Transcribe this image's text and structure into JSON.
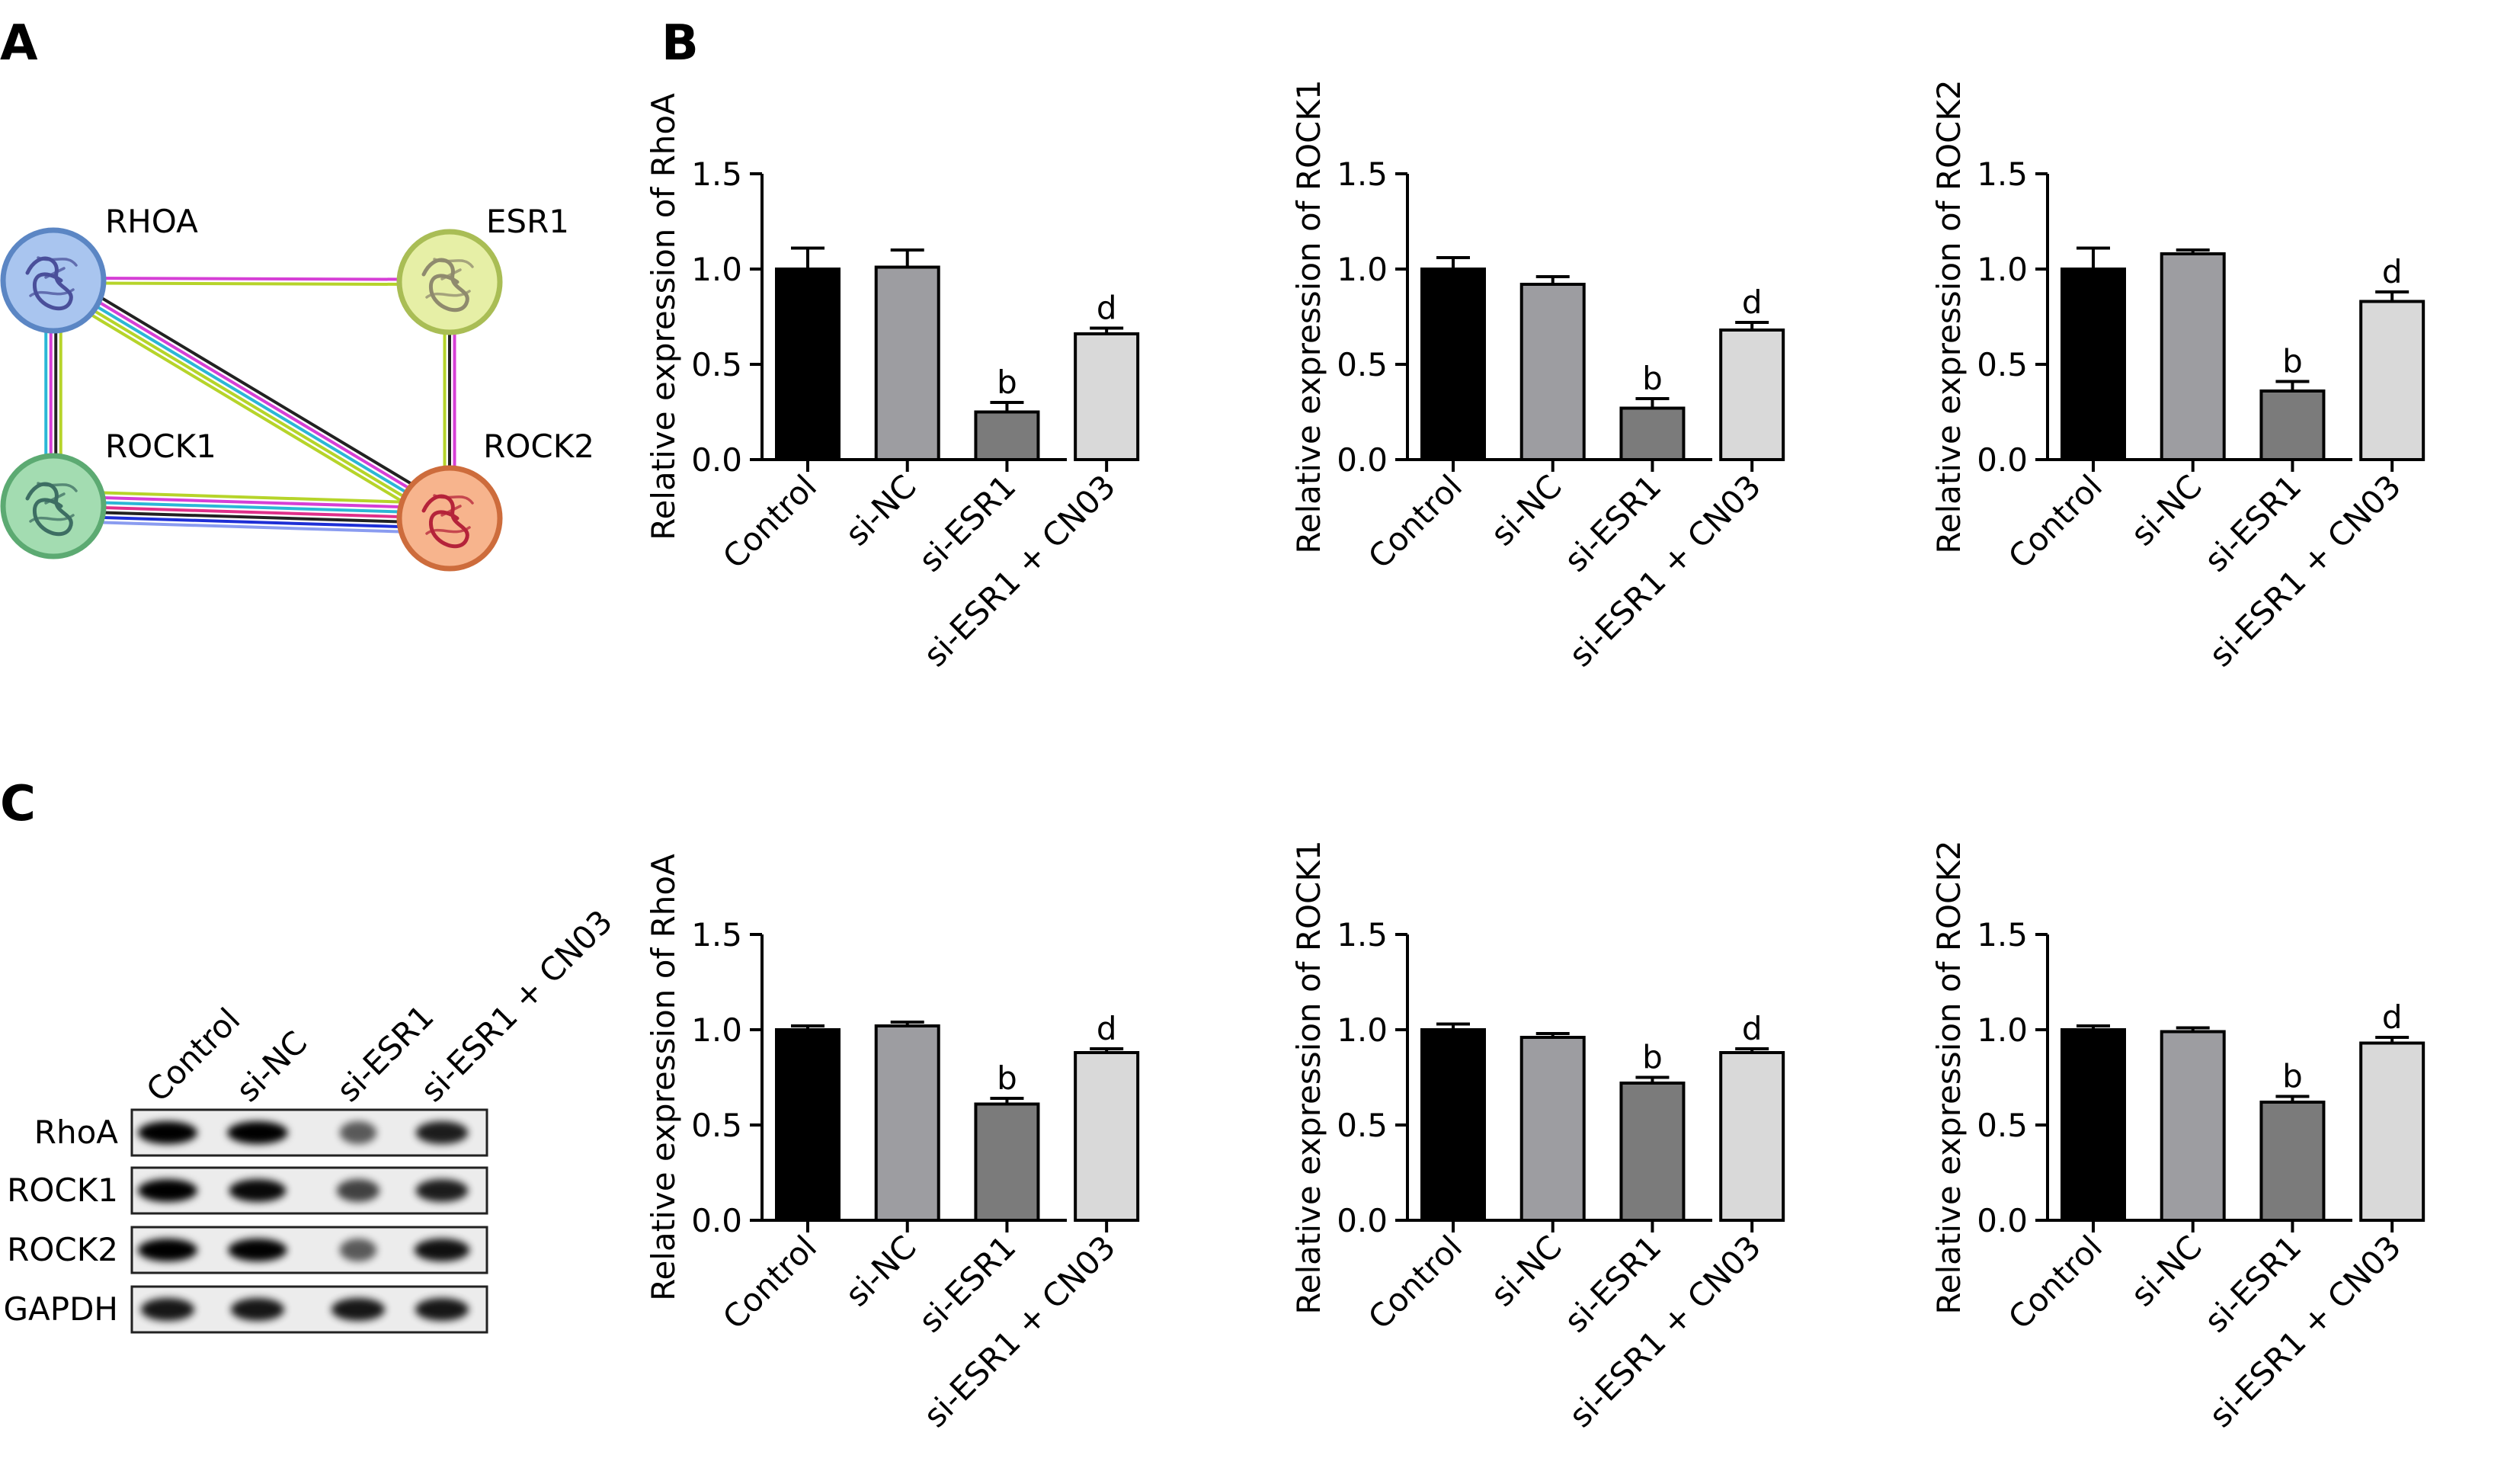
{
  "panels": {
    "a": "A",
    "b": "B",
    "c": "C"
  },
  "network": {
    "nodes": [
      {
        "id": "RHOA",
        "label": "RHOA",
        "color": "#a9c5ef",
        "stroke": "#5b86c4"
      },
      {
        "id": "ESR1",
        "label": "ESR1",
        "color": "#e6efa6",
        "stroke": "#a9bd55"
      },
      {
        "id": "ROCK1",
        "label": "ROCK1",
        "color": "#a3dcb1",
        "stroke": "#5caa72"
      },
      {
        "id": "ROCK2",
        "label": "ROCK2",
        "color": "#f7b48d",
        "stroke": "#cd6c3c"
      }
    ],
    "edges": [
      {
        "from": "RHOA",
        "to": "ESR1",
        "colors": [
          "#d63fd6",
          "#b6d42a"
        ]
      },
      {
        "from": "RHOA",
        "to": "ROCK1",
        "colors": [
          "#b6d42a",
          "#222222",
          "#d63fd6",
          "#2bb7d6"
        ]
      },
      {
        "from": "RHOA",
        "to": "ROCK2",
        "colors": [
          "#222222",
          "#d63fd6",
          "#2bb7d6",
          "#b6d42a",
          "#b6d42a"
        ]
      },
      {
        "from": "ESR1",
        "to": "ROCK2",
        "colors": [
          "#d63fd6",
          "#222222",
          "#b6d42a"
        ]
      },
      {
        "from": "ROCK1",
        "to": "ROCK2",
        "colors": [
          "#b6d42a",
          "#d63fd6",
          "#2bb7d6",
          "#e0308a",
          "#222222",
          "#1e2fd6",
          "#8a9cf0"
        ]
      }
    ]
  },
  "western_blot": {
    "lanes": [
      "Control",
      "si-NC",
      "si-ESR1",
      "si-ESR1 + CN03"
    ],
    "rows": [
      {
        "label": "RhoA",
        "intensity": [
          1.0,
          1.02,
          0.62,
          0.88
        ]
      },
      {
        "label": "ROCK1",
        "intensity": [
          1.0,
          0.96,
          0.72,
          0.88
        ]
      },
      {
        "label": "ROCK2",
        "intensity": [
          1.0,
          0.99,
          0.62,
          0.93
        ]
      },
      {
        "label": "GAPDH",
        "intensity": [
          0.9,
          0.9,
          0.9,
          0.9
        ]
      }
    ]
  },
  "colors": {
    "bars": [
      "#000000",
      "#9d9da1",
      "#7b7b7b",
      "#d9d9d9"
    ]
  },
  "chart_data": [
    {
      "panel": "B",
      "type": "bar",
      "categories": [
        "Control",
        "si-NC",
        "si-ESR1",
        "si-ESR1 + CN03"
      ],
      "values": [
        1.0,
        1.01,
        0.25,
        0.66
      ],
      "errors": [
        0.11,
        0.09,
        0.05,
        0.03
      ],
      "annotations": [
        "",
        "",
        "b",
        "d"
      ],
      "ylabel": "Relative expression of RhoA",
      "ylim": [
        0,
        1.5
      ],
      "yticks": [
        "0.0",
        "0.5",
        "1.0",
        "1.5"
      ]
    },
    {
      "panel": "B",
      "type": "bar",
      "categories": [
        "Control",
        "si-NC",
        "si-ESR1",
        "si-ESR1 + CN03"
      ],
      "values": [
        1.0,
        0.92,
        0.27,
        0.68
      ],
      "errors": [
        0.06,
        0.04,
        0.05,
        0.04
      ],
      "annotations": [
        "",
        "",
        "b",
        "d"
      ],
      "ylabel": "Relative expression of ROCK1",
      "ylim": [
        0,
        1.5
      ],
      "yticks": [
        "0.0",
        "0.5",
        "1.0",
        "1.5"
      ]
    },
    {
      "panel": "B",
      "type": "bar",
      "categories": [
        "Control",
        "si-NC",
        "si-ESR1",
        "si-ESR1 + CN03"
      ],
      "values": [
        1.0,
        1.08,
        0.36,
        0.83
      ],
      "errors": [
        0.11,
        0.02,
        0.05,
        0.05
      ],
      "annotations": [
        "",
        "",
        "b",
        "d"
      ],
      "ylabel": "Relative expression of ROCK2",
      "ylim": [
        0,
        1.5
      ],
      "yticks": [
        "0.0",
        "0.5",
        "1.0",
        "1.5"
      ]
    },
    {
      "panel": "C",
      "type": "bar",
      "categories": [
        "Control",
        "si-NC",
        "si-ESR1",
        "si-ESR1 + CN03"
      ],
      "values": [
        1.0,
        1.02,
        0.61,
        0.88
      ],
      "errors": [
        0.02,
        0.02,
        0.03,
        0.02
      ],
      "annotations": [
        "",
        "",
        "b",
        "d"
      ],
      "ylabel": "Relative expression of RhoA",
      "ylim": [
        0,
        1.5
      ],
      "yticks": [
        "0.0",
        "0.5",
        "1.0",
        "1.5"
      ]
    },
    {
      "panel": "C",
      "type": "bar",
      "categories": [
        "Control",
        "si-NC",
        "si-ESR1",
        "si-ESR1 + CN03"
      ],
      "values": [
        1.0,
        0.96,
        0.72,
        0.88
      ],
      "errors": [
        0.03,
        0.02,
        0.03,
        0.02
      ],
      "annotations": [
        "",
        "",
        "b",
        "d"
      ],
      "ylabel": "Relative expression of ROCK1",
      "ylim": [
        0,
        1.5
      ],
      "yticks": [
        "0.0",
        "0.5",
        "1.0",
        "1.5"
      ]
    },
    {
      "panel": "C",
      "type": "bar",
      "categories": [
        "Control",
        "si-NC",
        "si-ESR1",
        "si-ESR1 + CN03"
      ],
      "values": [
        1.0,
        0.99,
        0.62,
        0.93
      ],
      "errors": [
        0.02,
        0.02,
        0.03,
        0.03
      ],
      "annotations": [
        "",
        "",
        "b",
        "d"
      ],
      "ylabel": "Relative expression of ROCK2",
      "ylim": [
        0,
        1.5
      ],
      "yticks": [
        "0.0",
        "0.5",
        "1.0",
        "1.5"
      ]
    }
  ]
}
